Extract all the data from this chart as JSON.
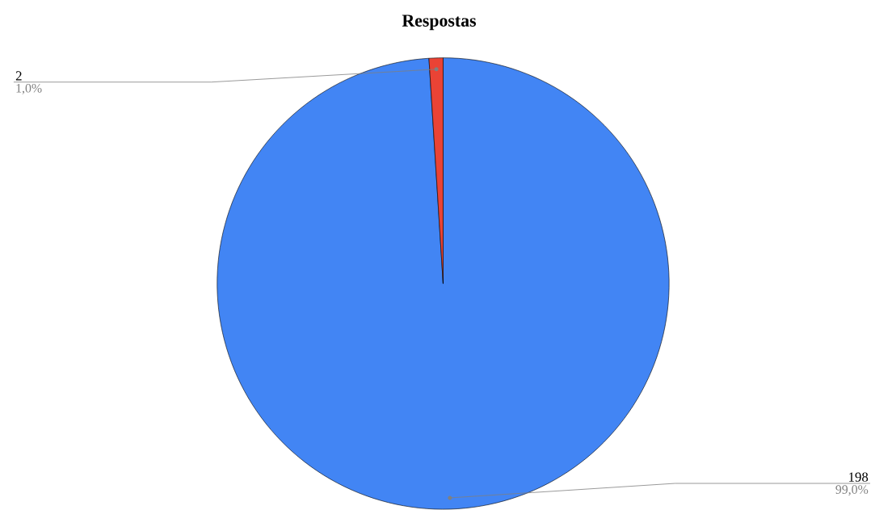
{
  "chart_data": {
    "type": "pie",
    "title": "Respostas",
    "categories": [
      null,
      null
    ],
    "values": [
      198,
      2
    ],
    "colors": [
      "#4285f4",
      "#ea4335"
    ],
    "value_labels": [
      "198",
      "2"
    ],
    "annotations": [
      "99,0%",
      "1,0%"
    ]
  }
}
